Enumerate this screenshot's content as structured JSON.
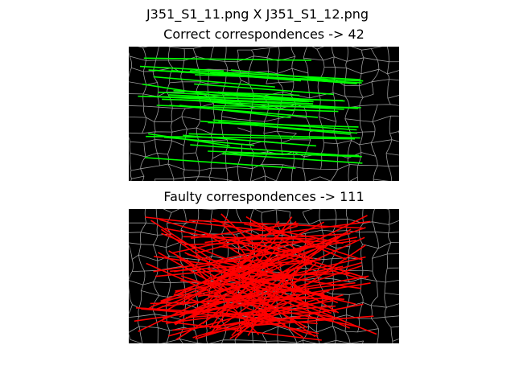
{
  "suptitle": "J351_S1_11.png  X  J351_S1_12.png",
  "chart_data": [
    {
      "type": "image-correspondences",
      "title": "Correct correspondences -> 42",
      "line_color": "#00ff00",
      "background": "#000000",
      "count": 42
    },
    {
      "type": "image-correspondences",
      "title": "Faulty correspondences -> 111",
      "line_color": "#ff0000",
      "background": "#000000",
      "count": 111
    }
  ]
}
